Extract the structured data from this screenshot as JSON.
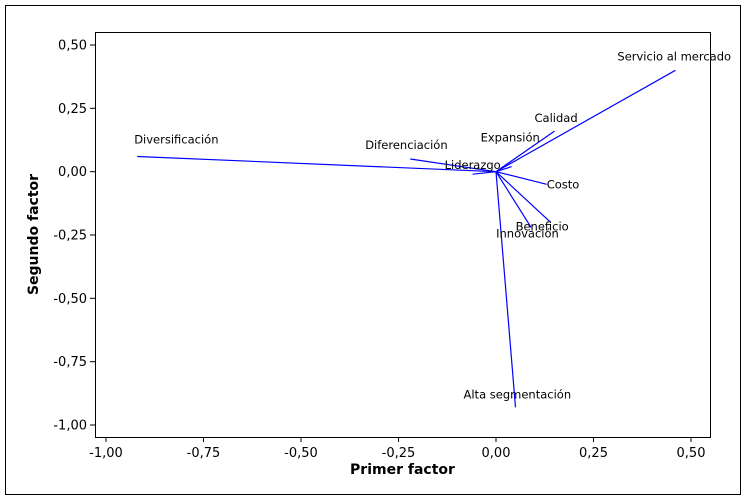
{
  "chart_data": {
    "type": "line",
    "chart_kind": "loading plot (vectors from origin)",
    "xlabel": "Primer factor",
    "ylabel": "Segundo factor",
    "xlim": [
      -1.0,
      0.5
    ],
    "ylim": [
      -1.0,
      0.5
    ],
    "x_ticks": [
      -1.0,
      -0.75,
      -0.5,
      -0.25,
      0.0,
      0.25,
      0.5
    ],
    "y_ticks": [
      -1.0,
      -0.75,
      -0.5,
      -0.25,
      0.0,
      0.25,
      0.5
    ],
    "x_tick_labels": [
      "-1,00",
      "-0,75",
      "-0,50",
      "-0,25",
      "0,00",
      "0,25",
      "0,50"
    ],
    "y_tick_labels": [
      "-1,00",
      "-0,75",
      "-0,50",
      "-0,25",
      "0,00",
      "0,25",
      "0,50"
    ],
    "grid": false,
    "line_color": "#0000ff",
    "vectors": [
      {
        "name": "Servicio al mercado",
        "x": 0.46,
        "y": 0.4
      },
      {
        "name": "Calidad",
        "x": 0.15,
        "y": 0.16
      },
      {
        "name": "Diversificación",
        "x": -0.92,
        "y": 0.06
      },
      {
        "name": "Diferenciación",
        "x": -0.22,
        "y": 0.05
      },
      {
        "name": "Expansión",
        "x": 0.04,
        "y": 0.02
      },
      {
        "name": "Liderazgo",
        "x": -0.06,
        "y": -0.01
      },
      {
        "name": "Costo",
        "x": 0.13,
        "y": -0.05
      },
      {
        "name": "Beneficio",
        "x": 0.14,
        "y": -0.2
      },
      {
        "name": "Innovación",
        "x": 0.09,
        "y": -0.22
      },
      {
        "name": "Alta segmentación",
        "x": 0.05,
        "y": -0.93
      }
    ]
  }
}
